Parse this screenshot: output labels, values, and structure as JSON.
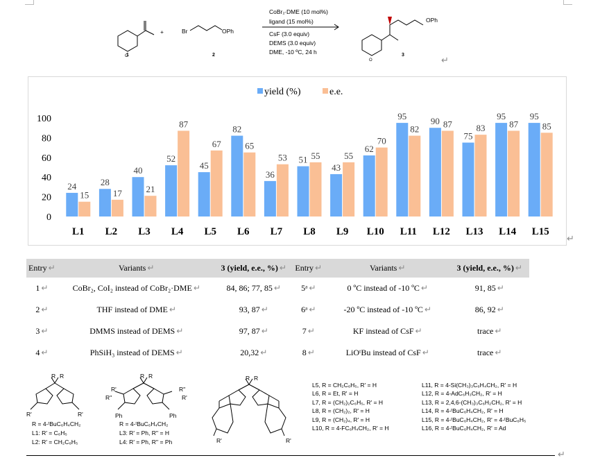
{
  "scheme": {
    "reagent_plus": "+",
    "bromide_label": "Br",
    "ophenyl_label": "OPh",
    "ophenyl_label_product": "OPh",
    "compound_numbers": [
      "1",
      "2",
      "3"
    ],
    "conditions": [
      "CoBr₂∙DME (10 mol%)",
      "ligand (15 mol%)",
      "CsF (3.0 equiv)",
      "DEMS (3.0 equiv)",
      "DME, -10 ºC, 24 h"
    ]
  },
  "chart_data": {
    "type": "bar",
    "categories": [
      "L1",
      "L2",
      "L3",
      "L4",
      "L5",
      "L6",
      "L7",
      "L8",
      "L9",
      "L10",
      "L11",
      "L12",
      "L13",
      "L14",
      "L15"
    ],
    "series": [
      {
        "name": "yield (%)",
        "color": "#6aacf7",
        "values": [
          24,
          28,
          40,
          52,
          45,
          82,
          36,
          51,
          43,
          62,
          95,
          90,
          75,
          95,
          95
        ]
      },
      {
        "name": "e.e.",
        "color": "#fabf95",
        "values": [
          15,
          17,
          21,
          87,
          67,
          65,
          53,
          55,
          55,
          70,
          82,
          87,
          83,
          87,
          85
        ]
      }
    ],
    "ylim": [
      0,
      100
    ],
    "yticks": [
      0,
      20,
      40,
      60,
      80,
      100
    ],
    "legend_position": "top",
    "grid": false
  },
  "table": {
    "headers": [
      "Entry",
      "Variants",
      "3 (yield, e.e., %)",
      "Entry",
      "Variants",
      "3 (yield, e.e., %)"
    ],
    "rows": [
      [
        "1",
        "CoBr₂, CoI₂ instead of CoBr₂·DME",
        "84, 86; 77, 85",
        "5ᵃ",
        "0 ºC instead of -10 ºC",
        "91, 85"
      ],
      [
        "2",
        "THF instead of DME",
        "93, 87",
        "6ᵃ",
        "-20 ºC instead of -10 ºC",
        "86, 92"
      ],
      [
        "3",
        "DMMS instead of DEMS",
        "97, 87",
        "7",
        "KF instead of CsF",
        "trace"
      ],
      [
        "4",
        "PhSiH₃ instead of DEMS",
        "20,32",
        "8",
        "LiOᵗBu instead of CsF",
        "trace"
      ]
    ]
  },
  "ligands": {
    "struct1": {
      "R": "R",
      "R_prime": "R'",
      "line1": "R = 4-ᵗBuC₆H₄CH₂",
      "line2": "L1: R' = C₆H₅",
      "line3": "L2: R' = CH₂C₆H₅"
    },
    "struct2": {
      "R": "R",
      "R_prime": "R'",
      "R_dprime": "R''",
      "Ph": "Ph",
      "line1": "R = 4-ᵗBuC₆H₄CH₂",
      "line2": "L3: R' = Ph, R'' = H",
      "line3": "L4: R' =  Ph, R'' =  Ph"
    },
    "struct3": {
      "R": "R",
      "R_prime": "R'"
    },
    "list_left": [
      "L5, R = CH₂C₆H₅, R' = H",
      "L6, R = Et, R' = H",
      "L7, R = (CH₂)₂C₆H₅, R' = H",
      "L8, R = (CH₂)₂, R' = H",
      "L9, R = (CH₂)₄, R' = H",
      "L10, R = 4-FC₆H₄CH₂, R' = H"
    ],
    "list_right": [
      "L11, R = 4-Si(CH₃)₃C₆H₄CH₂, R' = H",
      "L12, R = 4-AdC₆H₃CH₂, R' = H",
      "L13, R = 2,4,6-(CH₃)₃C₆H₂CH₂, R' = H",
      "L14, R = 4-ᵗBuC₆H₄CH₂, R' = H",
      "L15, R = 4-ᵗBuC₆H₄CH₂, R' = 4-ᵗBuC₆H₅",
      "L16, R = 4-ᵗBuC₆H₄CH₂, R' = Ad"
    ]
  }
}
